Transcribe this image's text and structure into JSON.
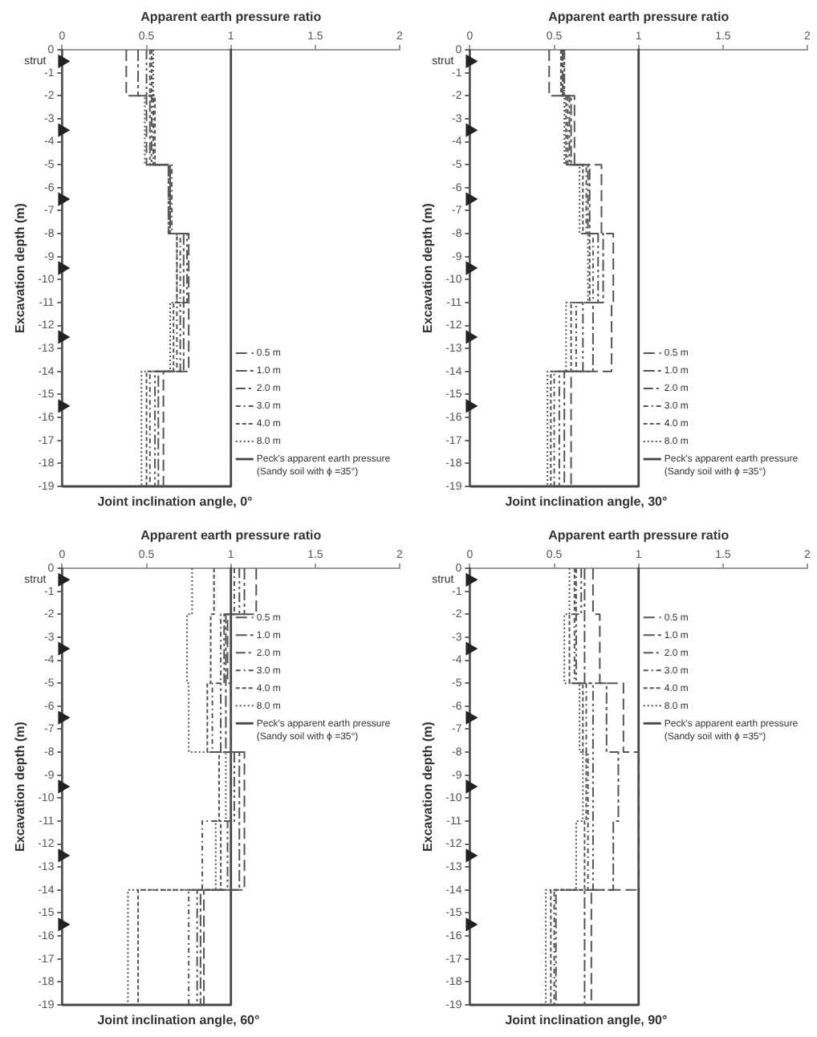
{
  "chart_data": [
    {
      "type": "line",
      "xlabel": "Apparent earth pressure ratio",
      "ylabel": "Excavation depth (m)",
      "xlim": [
        0,
        2
      ],
      "xticks": [
        0,
        0.5,
        1,
        1.5,
        2
      ],
      "ylim": [
        -19,
        0
      ],
      "yticks": [
        0,
        -1,
        -2,
        -3,
        -4,
        -5,
        -6,
        -7,
        -8,
        -9,
        -10,
        -11,
        -12,
        -13,
        -14,
        -15,
        -16,
        -17,
        -18,
        -19
      ],
      "grid": false,
      "legend": "bottom right",
      "marker": "none",
      "annotations": [
        "Joint inclination angle, 0°",
        "strut"
      ],
      "series": [
        {
          "name": "0.5 m",
          "color": "#555555",
          "line_style": "dashed",
          "x": [
            0.38,
            0.38,
            0.5,
            0.5,
            0.64,
            0.64,
            0.75,
            0.75,
            0.75,
            0.75,
            0.6,
            0.6
          ],
          "values": [
            0,
            -2,
            -2,
            -5,
            -5,
            -8,
            -8,
            -11,
            -11,
            -14,
            -14,
            -19
          ]
        },
        {
          "name": "1.0 m",
          "color": "#555555",
          "line_style": "dashed",
          "x": [
            0.45,
            0.45,
            0.52,
            0.52,
            0.63,
            0.63,
            0.72,
            0.72,
            0.72,
            0.72,
            0.57,
            0.57
          ],
          "values": [
            0,
            -2,
            -2,
            -5,
            -5,
            -8,
            -8,
            -11,
            -11,
            -14,
            -14,
            -19
          ]
        },
        {
          "name": "2.0 m",
          "color": "#555555",
          "line_style": "dashed",
          "x": [
            0.5,
            0.5,
            0.53,
            0.53,
            0.64,
            0.64,
            0.74,
            0.74,
            0.7,
            0.7,
            0.55,
            0.55
          ],
          "values": [
            0,
            -2,
            -2,
            -5,
            -5,
            -8,
            -8,
            -11,
            -11,
            -14,
            -14,
            -19
          ]
        },
        {
          "name": "3.0 m",
          "color": "#555555",
          "line_style": "dashed",
          "x": [
            0.52,
            0.52,
            0.54,
            0.54,
            0.65,
            0.65,
            0.7,
            0.7,
            0.68,
            0.68,
            0.52,
            0.52
          ],
          "values": [
            0,
            -2,
            -2,
            -5,
            -5,
            -8,
            -8,
            -11,
            -11,
            -14,
            -14,
            -19
          ]
        },
        {
          "name": "4.0 m",
          "color": "#555555",
          "line_style": "dashed",
          "x": [
            0.53,
            0.53,
            0.55,
            0.55,
            0.64,
            0.64,
            0.68,
            0.68,
            0.66,
            0.66,
            0.5,
            0.5
          ],
          "values": [
            0,
            -2,
            -2,
            -5,
            -5,
            -8,
            -8,
            -11,
            -11,
            -14,
            -14,
            -19
          ]
        },
        {
          "name": "8.0 m",
          "color": "#555555",
          "line_style": "dotted",
          "x": [
            0.54,
            0.54,
            0.49,
            0.49,
            0.63,
            0.63,
            0.68,
            0.68,
            0.64,
            0.64,
            0.47,
            0.47
          ],
          "values": [
            0,
            -2,
            -2,
            -5,
            -5,
            -8,
            -8,
            -11,
            -11,
            -14,
            -14,
            -19
          ]
        },
        {
          "name": "Peck's apparent earth pressure\n(Sandy soil with ϕ =35°)",
          "color": "#444444",
          "line_style": "solid",
          "x": [
            1,
            1,
            0
          ],
          "values": [
            0,
            -19,
            -19
          ]
        },
        {
          "type": "scatter",
          "color": "#222222",
          "marker": "triangle",
          "x": [
            0,
            0,
            0,
            0,
            0,
            0
          ],
          "values": [
            -0.5,
            -3.5,
            -6.5,
            -9.5,
            -12.5,
            -15.5
          ]
        }
      ]
    },
    {
      "type": "line",
      "xlabel": "Apparent earth pressure ratio",
      "ylabel": "Excavation depth (m)",
      "xlim": [
        0,
        2
      ],
      "xticks": [
        0,
        0.5,
        1,
        1.5,
        2
      ],
      "ylim": [
        -19,
        0
      ],
      "yticks": [
        0,
        -1,
        -2,
        -3,
        -4,
        -5,
        -6,
        -7,
        -8,
        -9,
        -10,
        -11,
        -12,
        -13,
        -14,
        -15,
        -16,
        -17,
        -18,
        -19
      ],
      "grid": false,
      "legend": "bottom right",
      "marker": "none",
      "annotations": [
        "Joint inclination angle, 30°",
        "strut"
      ],
      "series": [
        {
          "name": "0.5 m",
          "color": "#555555",
          "line_style": "dashed",
          "x": [
            0.47,
            0.47,
            0.62,
            0.62,
            0.78,
            0.78,
            0.85,
            0.85,
            0.84,
            0.84,
            0.6,
            0.6
          ],
          "values": [
            0,
            -2,
            -2,
            -5,
            -5,
            -8,
            -8,
            -11,
            -11,
            -14,
            -14,
            -19
          ]
        },
        {
          "name": "1.0 m",
          "color": "#555555",
          "line_style": "dashed",
          "x": [
            0.55,
            0.55,
            0.6,
            0.6,
            0.71,
            0.71,
            0.79,
            0.79,
            0.73,
            0.73,
            0.56,
            0.56
          ],
          "values": [
            0,
            -2,
            -2,
            -5,
            -5,
            -8,
            -8,
            -11,
            -11,
            -14,
            -14,
            -19
          ]
        },
        {
          "name": "2.0 m",
          "color": "#555555",
          "line_style": "dashed",
          "x": [
            0.56,
            0.56,
            0.59,
            0.59,
            0.7,
            0.7,
            0.76,
            0.76,
            0.67,
            0.67,
            0.53,
            0.53
          ],
          "values": [
            0,
            -2,
            -2,
            -5,
            -5,
            -8,
            -8,
            -11,
            -11,
            -14,
            -14,
            -19
          ]
        },
        {
          "name": "3.0 m",
          "color": "#555555",
          "line_style": "dashed",
          "x": [
            0.55,
            0.55,
            0.58,
            0.58,
            0.69,
            0.69,
            0.73,
            0.73,
            0.63,
            0.63,
            0.5,
            0.5
          ],
          "values": [
            0,
            -2,
            -2,
            -5,
            -5,
            -8,
            -8,
            -11,
            -11,
            -14,
            -14,
            -19
          ]
        },
        {
          "name": "4.0 m",
          "color": "#555555",
          "line_style": "dashed",
          "x": [
            0.54,
            0.54,
            0.57,
            0.57,
            0.67,
            0.67,
            0.71,
            0.71,
            0.6,
            0.6,
            0.48,
            0.48
          ],
          "values": [
            0,
            -2,
            -2,
            -5,
            -5,
            -8,
            -8,
            -11,
            -11,
            -14,
            -14,
            -19
          ]
        },
        {
          "name": "8.0 m",
          "color": "#555555",
          "line_style": "dotted",
          "x": [
            0.56,
            0.56,
            0.56,
            0.56,
            0.65,
            0.65,
            0.7,
            0.7,
            0.57,
            0.57,
            0.46,
            0.46
          ],
          "values": [
            0,
            -2,
            -2,
            -5,
            -5,
            -8,
            -8,
            -11,
            -11,
            -14,
            -14,
            -19
          ]
        },
        {
          "name": "Peck's apparent earth pressure\n(Sandy soil with ϕ =35°)",
          "color": "#444444",
          "line_style": "solid",
          "x": [
            1,
            1,
            0
          ],
          "values": [
            0,
            -19,
            -19
          ]
        },
        {
          "type": "scatter",
          "color": "#222222",
          "marker": "triangle",
          "x": [
            0,
            0,
            0,
            0,
            0,
            0
          ],
          "values": [
            -0.5,
            -3.5,
            -6.5,
            -9.5,
            -12.5,
            -15.5
          ]
        }
      ]
    },
    {
      "type": "line",
      "xlabel": "Apparent earth pressure ratio",
      "ylabel": "Excavation depth (m)",
      "xlim": [
        0,
        2
      ],
      "xticks": [
        0,
        0.5,
        1,
        1.5,
        2
      ],
      "ylim": [
        -19,
        0
      ],
      "yticks": [
        0,
        -1,
        -2,
        -3,
        -4,
        -5,
        -6,
        -7,
        -8,
        -9,
        -10,
        -11,
        -12,
        -13,
        -14,
        -15,
        -16,
        -17,
        -18,
        -19
      ],
      "grid": false,
      "legend": "top right",
      "marker": "none",
      "annotations": [
        "Joint inclination angle, 60°",
        "strut"
      ],
      "series": [
        {
          "name": "0.5 m",
          "color": "#555555",
          "line_style": "dashed",
          "x": [
            1.15,
            1.15,
            0.98,
            0.98,
            1,
            1,
            1.08,
            1.08,
            1.08,
            1.08,
            0.84,
            0.84
          ],
          "values": [
            0,
            -2,
            -2,
            -5,
            -5,
            -8,
            -8,
            -11,
            -11,
            -14,
            -14,
            -19
          ]
        },
        {
          "name": "1.0 m",
          "color": "#555555",
          "line_style": "dashed",
          "x": [
            1.08,
            1.08,
            0.97,
            0.97,
            0.97,
            0.97,
            1.05,
            1.05,
            1.05,
            1.05,
            0.82,
            0.82
          ],
          "values": [
            0,
            -2,
            -2,
            -5,
            -5,
            -8,
            -8,
            -11,
            -11,
            -14,
            -14,
            -19
          ]
        },
        {
          "name": "2.0 m",
          "color": "#555555",
          "line_style": "dashed",
          "x": [
            1.05,
            1.05,
            0.96,
            0.96,
            0.94,
            0.94,
            1.02,
            1.02,
            0.98,
            0.98,
            0.8,
            0.8
          ],
          "values": [
            0,
            -2,
            -2,
            -5,
            -5,
            -8,
            -8,
            -11,
            -11,
            -14,
            -14,
            -19
          ]
        },
        {
          "name": "3.0 m",
          "color": "#555555",
          "line_style": "dashed",
          "x": [
            1.02,
            1.02,
            0.94,
            0.94,
            0.89,
            0.89,
            1,
            1,
            0.83,
            0.83,
            0.75,
            0.75
          ],
          "values": [
            0,
            -2,
            -2,
            -5,
            -5,
            -8,
            -8,
            -11,
            -11,
            -14,
            -14,
            -19
          ]
        },
        {
          "name": "4.0 m",
          "color": "#555555",
          "line_style": "dashed",
          "x": [
            0.9,
            0.9,
            0.88,
            0.88,
            0.86,
            0.86,
            0.93,
            0.93,
            0.94,
            0.94,
            0.45,
            0.45
          ],
          "values": [
            0,
            -2,
            -2,
            -5,
            -5,
            -8,
            -8,
            -11,
            -11,
            -14,
            -14,
            -19
          ]
        },
        {
          "name": "8.0 m",
          "color": "#555555",
          "line_style": "dotted",
          "x": [
            0.77,
            0.77,
            0.74,
            0.74,
            0.75,
            0.75,
            0.97,
            0.97,
            0.91,
            0.91,
            0.39,
            0.39
          ],
          "values": [
            0,
            -2,
            -2,
            -5,
            -5,
            -8,
            -8,
            -11,
            -11,
            -14,
            -14,
            -19
          ]
        },
        {
          "name": "Peck's apparent earth pressure\n(Sandy soil with ϕ =35°)",
          "color": "#444444",
          "line_style": "solid",
          "x": [
            1,
            1,
            0
          ],
          "values": [
            0,
            -19,
            -19
          ]
        },
        {
          "type": "scatter",
          "color": "#222222",
          "marker": "triangle",
          "x": [
            0,
            0,
            0,
            0,
            0,
            0
          ],
          "values": [
            -0.5,
            -3.5,
            -6.5,
            -9.5,
            -12.5,
            -15.5
          ]
        }
      ]
    },
    {
      "type": "line",
      "xlabel": "Apparent earth pressure ratio",
      "ylabel": "Excavation depth (m)",
      "xlim": [
        0,
        2
      ],
      "xticks": [
        0,
        0.5,
        1,
        1.5,
        2
      ],
      "ylim": [
        -19,
        0
      ],
      "yticks": [
        0,
        -1,
        -2,
        -3,
        -4,
        -5,
        -6,
        -7,
        -8,
        -9,
        -10,
        -11,
        -12,
        -13,
        -14,
        -15,
        -16,
        -17,
        -18,
        -19
      ],
      "grid": false,
      "legend": "top right",
      "marker": "none",
      "annotations": [
        "Joint inclination angle, 90°",
        "strut"
      ],
      "series": [
        {
          "name": "0.5 m",
          "color": "#555555",
          "line_style": "dashed",
          "x": [
            0.73,
            0.73,
            0.77,
            0.77,
            0.91,
            0.91,
            1,
            1,
            1,
            1,
            0.72,
            0.72
          ],
          "values": [
            0,
            -2,
            -2,
            -5,
            -5,
            -8,
            -8,
            -11,
            -11,
            -14,
            -14,
            -19
          ]
        },
        {
          "name": "1.0 m",
          "color": "#555555",
          "line_style": "dashed",
          "x": [
            0.68,
            0.68,
            0.68,
            0.68,
            0.81,
            0.81,
            0.88,
            0.88,
            0.85,
            0.85,
            0.68,
            0.68
          ],
          "values": [
            0,
            -2,
            -2,
            -5,
            -5,
            -8,
            -8,
            -11,
            -11,
            -14,
            -14,
            -19
          ]
        },
        {
          "name": "2.0 m",
          "color": "#555555",
          "line_style": "dashed",
          "x": [
            0.66,
            0.66,
            0.63,
            0.63,
            0.73,
            0.73,
            0.73,
            0.73,
            0.73,
            0.73,
            0.51,
            0.51
          ],
          "values": [
            0,
            -2,
            -2,
            -5,
            -5,
            -8,
            -8,
            -11,
            -11,
            -14,
            -14,
            -19
          ]
        },
        {
          "name": "3.0 m",
          "color": "#555555",
          "line_style": "dashed",
          "x": [
            0.63,
            0.63,
            0.62,
            0.62,
            0.69,
            0.69,
            0.7,
            0.7,
            0.7,
            0.7,
            0.5,
            0.5
          ],
          "values": [
            0,
            -2,
            -2,
            -5,
            -5,
            -8,
            -8,
            -11,
            -11,
            -14,
            -14,
            -19
          ]
        },
        {
          "name": "4.0 m",
          "color": "#555555",
          "line_style": "dashed",
          "x": [
            0.62,
            0.62,
            0.59,
            0.59,
            0.67,
            0.67,
            0.69,
            0.69,
            0.68,
            0.68,
            0.48,
            0.48
          ],
          "values": [
            0,
            -2,
            -2,
            -5,
            -5,
            -8,
            -8,
            -11,
            -11,
            -14,
            -14,
            -19
          ]
        },
        {
          "name": "8.0 m",
          "color": "#555555",
          "line_style": "dotted",
          "x": [
            0.59,
            0.59,
            0.56,
            0.56,
            0.65,
            0.65,
            0.67,
            0.67,
            0.63,
            0.63,
            0.45,
            0.45
          ],
          "values": [
            0,
            -2,
            -2,
            -5,
            -5,
            -8,
            -8,
            -11,
            -11,
            -14,
            -14,
            -19
          ]
        },
        {
          "name": "Peck's apparent earth pressure\n(Sandy soil with ϕ =35°)",
          "color": "#444444",
          "line_style": "solid",
          "x": [
            1,
            1,
            0
          ],
          "values": [
            0,
            -19,
            -19
          ]
        },
        {
          "type": "scatter",
          "color": "#222222",
          "marker": "triangle",
          "x": [
            0,
            0,
            0,
            0,
            0,
            0
          ],
          "values": [
            -0.5,
            -3.5,
            -6.5,
            -9.5,
            -12.5,
            -15.5
          ]
        }
      ]
    }
  ]
}
